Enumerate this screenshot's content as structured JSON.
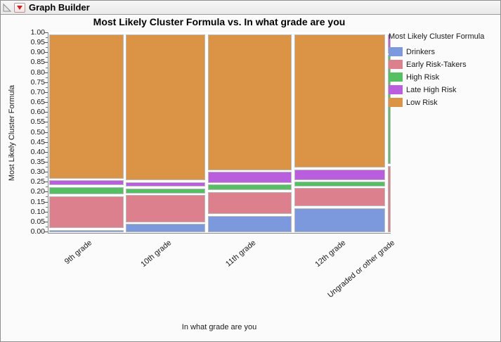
{
  "window": {
    "title": "Graph Builder"
  },
  "titlebar_icons": {
    "disclosure": "disclosure-triangle-icon",
    "menu": "red-triangle-menu-icon"
  },
  "chart_data": {
    "type": "mosaic",
    "title": "Most Likely Cluster Formula vs. In what grade are you",
    "xlabel": "In what grade are you",
    "ylabel": "Most Likely Cluster Formula",
    "ylim": [
      0.0,
      1.0
    ],
    "ytick_step": 0.05,
    "ytick_labels": [
      "0.00",
      "0.05",
      "0.10",
      "0.15",
      "0.20",
      "0.25",
      "0.30",
      "0.35",
      "0.40",
      "0.45",
      "0.50",
      "0.55",
      "0.60",
      "0.65",
      "0.70",
      "0.75",
      "0.80",
      "0.85",
      "0.90",
      "0.95",
      "1.00"
    ],
    "grid": false,
    "categories": [
      "9th grade",
      "10th grade",
      "11th grade",
      "12th grade",
      "Ungraded or other grade"
    ],
    "category_width_fractions": [
      0.224,
      0.24,
      0.253,
      0.274,
      0.009
    ],
    "series": [
      {
        "name": "Drinkers",
        "color": "#7D99DE",
        "values": [
          0.02,
          0.05,
          0.09,
          0.13,
          0.0
        ]
      },
      {
        "name": "Early Risk-Takers",
        "color": "#DC808D",
        "values": [
          0.17,
          0.145,
          0.12,
          0.1,
          0.34
        ]
      },
      {
        "name": "High Risk",
        "color": "#55C063",
        "values": [
          0.045,
          0.033,
          0.038,
          0.032,
          0.555
        ]
      },
      {
        "name": "Late High Risk",
        "color": "#B95FDE",
        "values": [
          0.033,
          0.032,
          0.062,
          0.061,
          0.105
        ]
      },
      {
        "name": "Low Risk",
        "color": "#DB9345",
        "values": [
          0.732,
          0.74,
          0.69,
          0.677,
          0.0
        ]
      }
    ],
    "legend": {
      "title": "Most Likely Cluster Formula",
      "position": "right"
    }
  }
}
